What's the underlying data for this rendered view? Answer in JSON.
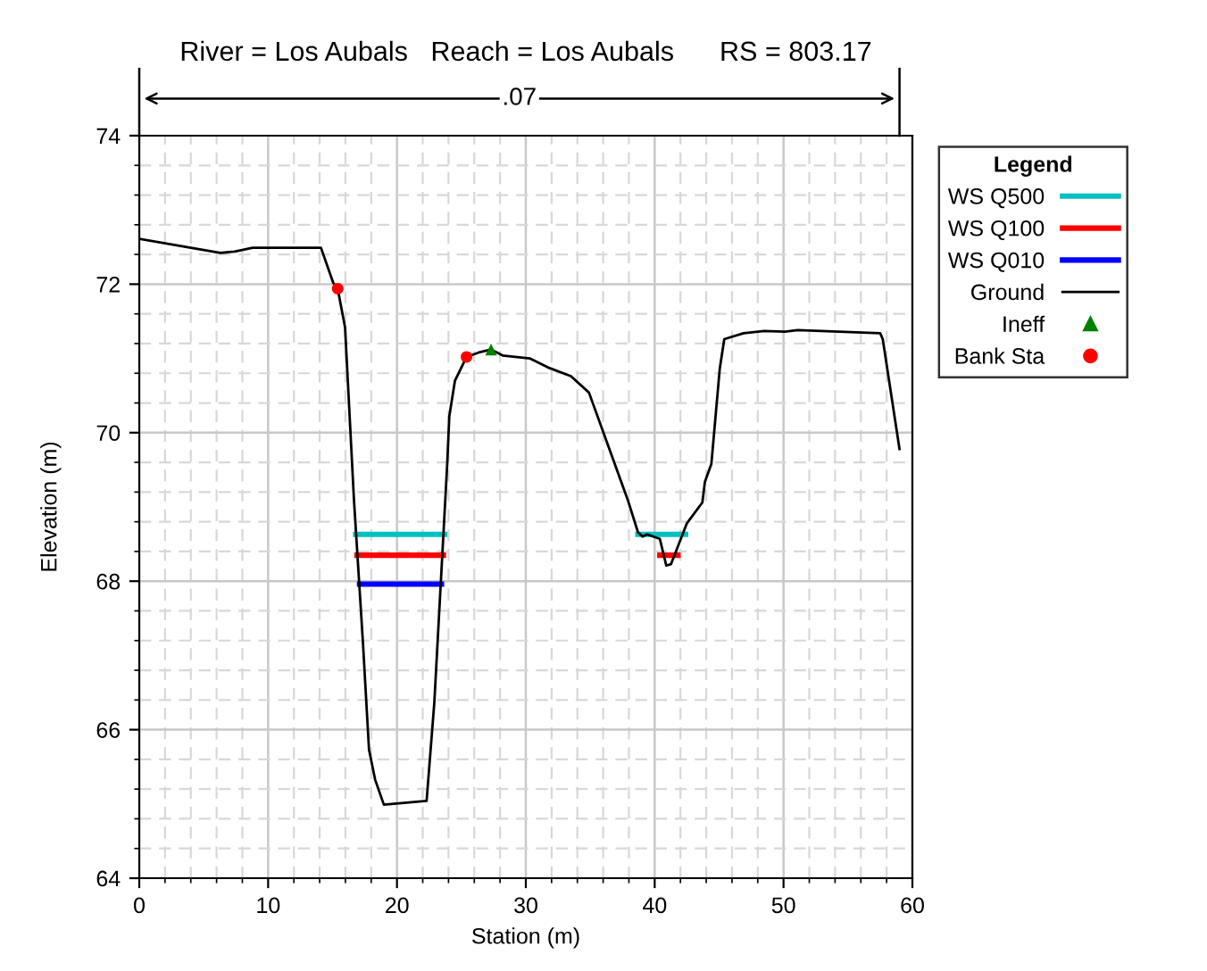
{
  "chart_data": {
    "type": "line",
    "title": "River = Los Aubals   Reach = Los Aubals      RS = 803.17",
    "xlabel": "Station (m)",
    "ylabel": "Elevation (m)",
    "legend_title": "Legend",
    "annotations": [
      ".07"
    ],
    "xlim": [
      0,
      60
    ],
    "xticks": [
      0,
      10,
      20,
      30,
      40,
      50,
      60
    ],
    "ylim": [
      64,
      74
    ],
    "yticks": [
      64,
      66,
      68,
      70,
      72,
      74
    ],
    "grid": true,
    "legend": "right",
    "series": [
      {
        "name": "WS Q500",
        "color": "#00c0c0",
        "type": "line",
        "x": [
          16.8,
          23.7,
          null,
          38.7,
          42.4
        ],
        "values": [
          68.63,
          68.63,
          null,
          68.63,
          68.63
        ]
      },
      {
        "name": "WS Q100",
        "color": "#ff0000",
        "type": "line",
        "x": [
          16.9,
          23.6,
          null,
          40.4,
          41.8
        ],
        "values": [
          68.35,
          68.35,
          null,
          68.35,
          68.35
        ]
      },
      {
        "name": "WS Q010",
        "color": "#0000ff",
        "type": "line",
        "x": [
          17.1,
          23.45
        ],
        "values": [
          67.96,
          67.96
        ]
      },
      {
        "name": "Ground",
        "color": "#000000",
        "type": "line",
        "x": [
          0,
          6.3,
          7.4,
          8.8,
          14.1,
          15.05,
          15.4,
          15.97,
          16.66,
          17.36,
          17.83,
          18.3,
          18.98,
          22.3,
          22.9,
          23.9,
          24.06,
          24.5,
          25.4,
          26.35,
          27.3,
          28.2,
          30.3,
          31.7,
          33.5,
          34.9,
          37.9,
          38.7,
          39.06,
          39.4,
          40.4,
          40.9,
          41.27,
          42.5,
          43.7,
          43.9,
          44.4,
          45.05,
          45.4,
          46.9,
          48.5,
          50.1,
          51.1,
          57.5,
          57.7,
          59.0
        ],
        "values": [
          72.61,
          72.42,
          72.44,
          72.49,
          72.49,
          72.02,
          71.94,
          71.42,
          69.1,
          67.17,
          65.73,
          65.33,
          64.99,
          65.04,
          66.37,
          69.58,
          70.22,
          70.7,
          71.02,
          71.08,
          71.12,
          71.04,
          71.0,
          70.88,
          70.76,
          70.54,
          69.1,
          68.66,
          68.6,
          68.63,
          68.57,
          68.21,
          68.23,
          68.78,
          69.06,
          69.34,
          69.58,
          70.86,
          71.26,
          71.34,
          71.37,
          71.36,
          71.38,
          71.34,
          71.26,
          69.78
        ]
      },
      {
        "name": "Ineff",
        "color": "#008000",
        "type": "scatter",
        "marker": "triangle",
        "x": [
          27.3
        ],
        "values": [
          71.12
        ]
      },
      {
        "name": "Bank Sta",
        "color": "#ff0000",
        "type": "scatter",
        "marker": "circle",
        "x": [
          15.4,
          25.4
        ],
        "values": [
          71.94,
          71.02
        ]
      }
    ]
  }
}
